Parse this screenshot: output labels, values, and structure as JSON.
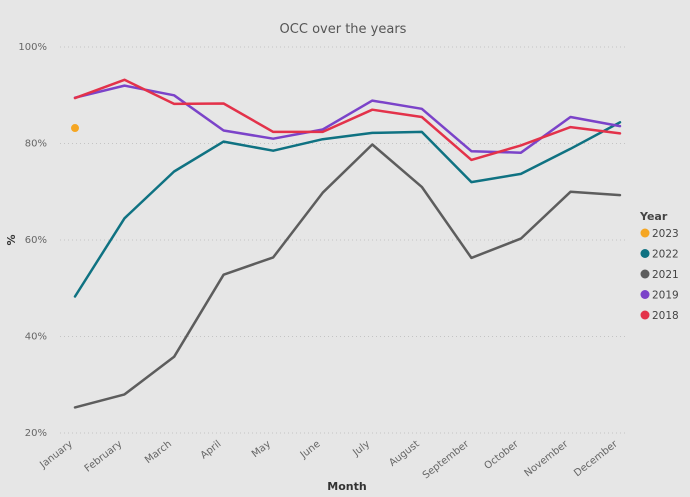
{
  "chart_data": {
    "type": "line",
    "title": "OCC over the years",
    "xlabel": "Month",
    "ylabel": "%",
    "categories": [
      "January",
      "February",
      "March",
      "April",
      "May",
      "June",
      "July",
      "August",
      "September",
      "October",
      "November",
      "December"
    ],
    "ylim": [
      20,
      100
    ],
    "yticks": [
      20,
      40,
      60,
      80,
      100
    ],
    "ytick_labels": [
      "20%",
      "40%",
      "60%",
      "80%",
      "100%"
    ],
    "grid": true,
    "legend_title": "Year",
    "legend_position": "right",
    "series": [
      {
        "name": "2023",
        "color": "#f5a623",
        "values": [
          83.2,
          null,
          null,
          null,
          null,
          null,
          null,
          null,
          null,
          null,
          null,
          null
        ]
      },
      {
        "name": "2022",
        "color": "#0f7282",
        "values": [
          48.3,
          64.5,
          74.2,
          80.4,
          78.5,
          80.9,
          82.2,
          82.4,
          72.0,
          73.7,
          78.9,
          84.4
        ]
      },
      {
        "name": "2021",
        "color": "#5d5d5d",
        "values": [
          25.3,
          28.0,
          35.8,
          52.8,
          56.4,
          69.8,
          79.8,
          71.0,
          56.3,
          60.3,
          70.0,
          69.3
        ]
      },
      {
        "name": "2019",
        "color": "#7b43c9",
        "values": [
          89.5,
          92.0,
          90.0,
          82.7,
          81.0,
          82.9,
          88.9,
          87.2,
          78.4,
          78.1,
          85.5,
          83.6
        ]
      },
      {
        "name": "2018",
        "color": "#e3324a",
        "values": [
          89.4,
          93.2,
          88.2,
          88.3,
          82.4,
          82.4,
          87.0,
          85.5,
          76.6,
          79.6,
          83.4,
          82.1
        ]
      }
    ]
  }
}
